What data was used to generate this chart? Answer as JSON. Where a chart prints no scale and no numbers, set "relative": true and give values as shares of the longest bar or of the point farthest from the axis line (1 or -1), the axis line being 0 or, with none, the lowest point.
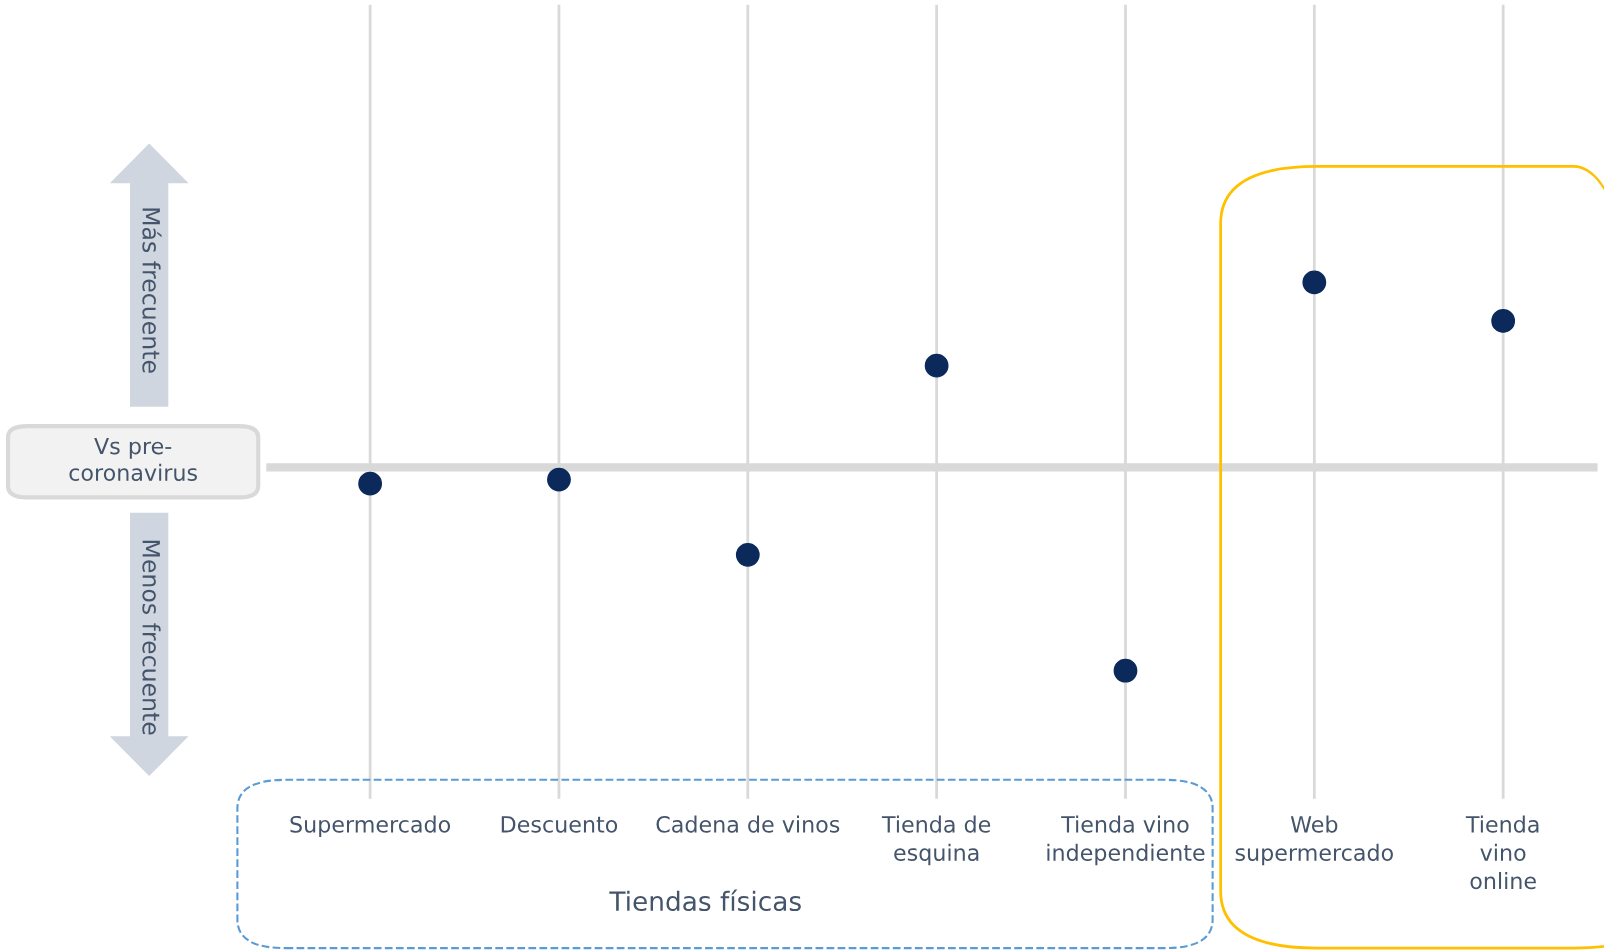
{
  "chart_data": {
    "type": "scatter",
    "relative": true,
    "categories": [
      "Supermercado",
      "Descuento",
      "Cadena de vinos",
      "Tienda de\nesquina",
      "Tienda vino\nindependiente",
      "Web\nsupermercado",
      "Tienda\nvino\nonline"
    ],
    "series": [
      {
        "color": "#0b2a5b",
        "values": [
          -0.08,
          -0.06,
          -0.43,
          0.5,
          -1,
          0.91,
          0.72
        ]
      }
    ],
    "marker": "circle",
    "grid": "x",
    "legend": false,
    "annotations": [
      "Más frecuente",
      "Menos frecuente",
      "Vs pre-\ncoronavirus",
      "Tiendas físicas"
    ]
  }
}
